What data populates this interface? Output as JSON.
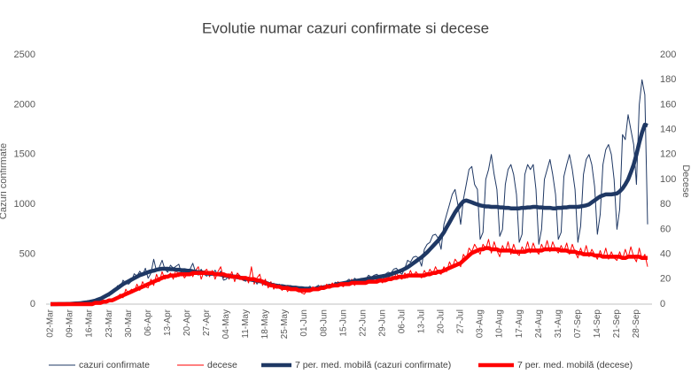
{
  "chart_data": {
    "type": "line",
    "title": "Evolutie numar cazuri confirmate si decese",
    "y_label": "Cazuri confirmate",
    "y2_label": "Decese",
    "categories": [
      "02-Mar",
      null,
      null,
      null,
      null,
      null,
      null,
      "09-Mar",
      null,
      null,
      null,
      null,
      null,
      null,
      "16-Mar",
      null,
      null,
      null,
      null,
      null,
      null,
      "23-Mar",
      null,
      null,
      null,
      null,
      null,
      null,
      "30-Mar",
      null,
      null,
      null,
      null,
      null,
      null,
      "06-Apr",
      null,
      null,
      null,
      null,
      null,
      null,
      "13-Apr",
      null,
      null,
      null,
      null,
      null,
      null,
      "20-Apr",
      null,
      null,
      null,
      null,
      null,
      null,
      "27-Apr",
      null,
      null,
      null,
      null,
      null,
      null,
      "04-May",
      null,
      null,
      null,
      null,
      null,
      null,
      "11-May",
      null,
      null,
      null,
      null,
      null,
      null,
      "18-May",
      null,
      null,
      null,
      null,
      null,
      null,
      "25-May",
      null,
      null,
      null,
      null,
      null,
      null,
      "01-Jun",
      null,
      null,
      null,
      null,
      null,
      null,
      "08-Jun",
      null,
      null,
      null,
      null,
      null,
      null,
      "15-Jun",
      null,
      null,
      null,
      null,
      null,
      null,
      "22-Jun",
      null,
      null,
      null,
      null,
      null,
      null,
      "29-Jun",
      null,
      null,
      null,
      null,
      null,
      null,
      "06-Jul",
      null,
      null,
      null,
      null,
      null,
      null,
      "13-Jul",
      null,
      null,
      null,
      null,
      null,
      null,
      "20-Jul",
      null,
      null,
      null,
      null,
      null,
      null,
      "27-Jul",
      null,
      null,
      null,
      null,
      null,
      null,
      "03-Aug",
      null,
      null,
      null,
      null,
      null,
      null,
      "10-Aug",
      null,
      null,
      null,
      null,
      null,
      null,
      "17-Aug",
      null,
      null,
      null,
      null,
      null,
      null,
      "24-Aug",
      null,
      null,
      null,
      null,
      null,
      null,
      "31-Aug",
      null,
      null,
      null,
      null,
      null,
      null,
      "07-Sep",
      null,
      null,
      null,
      null,
      null,
      null,
      "14-Sep",
      null,
      null,
      null,
      null,
      null,
      null,
      "21-Sep",
      null,
      null,
      null,
      null,
      null,
      null,
      "28-Sep",
      null,
      null,
      null,
      null
    ],
    "series": [
      {
        "name": "cazuri confirmate",
        "color": "#1f3864",
        "values": [
          0,
          0,
          0,
          2,
          0,
          1,
          3,
          2,
          6,
          3,
          10,
          13,
          17,
          22,
          24,
          30,
          28,
          45,
          60,
          70,
          95,
          80,
          110,
          130,
          185,
          160,
          240,
          210,
          200,
          230,
          305,
          280,
          330,
          290,
          360,
          260,
          310,
          450,
          330,
          370,
          440,
          350,
          320,
          390,
          360,
          380,
          400,
          300,
          330,
          305,
          350,
          410,
          320,
          290,
          350,
          300,
          280,
          320,
          300,
          340,
          290,
          330,
          240,
          250,
          300,
          290,
          260,
          310,
          280,
          240,
          230,
          270,
          250,
          260,
          200,
          240,
          210,
          190,
          220,
          180,
          210,
          170,
          200,
          160,
          150,
          190,
          180,
          170,
          160,
          175,
          140,
          130,
          160,
          180,
          150,
          170,
          190,
          160,
          150,
          190,
          200,
          170,
          220,
          210,
          200,
          180,
          230,
          250,
          220,
          260,
          240,
          230,
          200,
          250,
          290,
          270,
          290,
          300,
          270,
          240,
          300,
          320,
          310,
          350,
          360,
          320,
          300,
          360,
          440,
          420,
          470,
          480,
          460,
          380,
          550,
          600,
          620,
          690,
          700,
          660,
          550,
          800,
          900,
          1000,
          1100,
          1150,
          1000,
          800,
          1050,
          1200,
          1350,
          1380,
          1200,
          1150,
          650,
          720,
          1250,
          1350,
          1500,
          1300,
          1150,
          680,
          750,
          1200,
          1350,
          1400,
          1300,
          1100,
          620,
          700,
          1300,
          1400,
          1350,
          1400,
          1150,
          600,
          750,
          1250,
          1350,
          1450,
          1300,
          1100,
          650,
          720,
          1280,
          1400,
          1500,
          1350,
          1150,
          620,
          780,
          1300,
          1450,
          1500,
          1400,
          1180,
          700,
          900,
          1400,
          1550,
          1600,
          1500,
          1250,
          750,
          950,
          1700,
          1650,
          1900,
          1750,
          1600,
          1200,
          2000,
          2250,
          2100,
          800
        ]
      },
      {
        "name": "decese",
        "color": "#ff0000",
        "axis": "y2",
        "values": [
          0,
          0,
          0,
          0,
          0,
          0,
          0,
          0,
          0,
          0,
          0,
          0,
          0,
          0,
          0,
          0,
          1,
          0,
          2,
          3,
          1,
          2,
          4,
          3,
          6,
          8,
          5,
          12,
          8,
          12,
          10,
          16,
          11,
          18,
          14,
          13,
          20,
          15,
          24,
          18,
          26,
          20,
          22,
          25,
          20,
          28,
          22,
          26,
          21,
          24,
          28,
          22,
          27,
          30,
          20,
          26,
          28,
          22,
          27,
          20,
          26,
          30,
          21,
          24,
          20,
          26,
          18,
          25,
          22,
          19,
          22,
          17,
          30,
          16,
          21,
          24,
          15,
          20,
          13,
          18,
          12,
          16,
          14,
          11,
          14,
          10,
          15,
          11,
          13,
          12,
          9,
          8,
          12,
          10,
          14,
          11,
          13,
          15,
          12,
          16,
          13,
          17,
          14,
          18,
          15,
          14,
          18,
          16,
          20,
          15,
          19,
          17,
          16,
          20,
          17,
          22,
          18,
          20,
          19,
          17,
          22,
          19,
          24,
          20,
          25,
          21,
          20,
          25,
          21,
          27,
          22,
          26,
          23,
          21,
          27,
          23,
          28,
          24,
          30,
          25,
          24,
          30,
          26,
          34,
          29,
          36,
          33,
          30,
          40,
          36,
          45,
          42,
          48,
          44,
          40,
          48,
          44,
          52,
          41,
          50,
          43,
          38,
          47,
          42,
          50,
          40,
          48,
          41,
          39,
          46,
          42,
          50,
          41,
          49,
          43,
          40,
          48,
          43,
          51,
          42,
          50,
          44,
          41,
          47,
          42,
          49,
          40,
          48,
          42,
          37,
          45,
          39,
          47,
          38,
          44,
          40,
          36,
          43,
          37,
          45,
          36,
          42,
          37,
          35,
          42,
          36,
          44,
          37,
          46,
          38,
          34,
          45,
          36,
          40,
          30
        ]
      },
      {
        "name": "7 per. med. mobilă (cazuri confirmate)",
        "color": "#1f3864",
        "values": [
          0,
          0,
          0,
          1,
          1,
          1,
          2,
          3,
          4,
          6,
          8,
          10,
          14,
          18,
          22,
          28,
          35,
          45,
          55,
          70,
          85,
          100,
          120,
          140,
          160,
          180,
          200,
          215,
          230,
          245,
          260,
          275,
          290,
          300,
          310,
          320,
          330,
          335,
          345,
          350,
          355,
          355,
          355,
          350,
          350,
          345,
          345,
          340,
          340,
          335,
          335,
          330,
          325,
          320,
          320,
          315,
          310,
          305,
          305,
          300,
          300,
          295,
          290,
          285,
          280,
          280,
          275,
          270,
          265,
          260,
          255,
          250,
          245,
          240,
          235,
          230,
          225,
          215,
          205,
          195,
          190,
          185,
          180,
          180,
          175,
          170,
          170,
          165,
          165,
          160,
          160,
          155,
          155,
          150,
          150,
          155,
          160,
          165,
          170,
          175,
          180,
          185,
          190,
          200,
          205,
          210,
          215,
          220,
          225,
          230,
          235,
          240,
          245,
          250,
          255,
          260,
          265,
          270,
          275,
          280,
          285,
          290,
          300,
          310,
          320,
          330,
          340,
          355,
          370,
          390,
          410,
          430,
          450,
          470,
          495,
          520,
          550,
          580,
          610,
          640,
          680,
          720,
          770,
          820,
          870,
          920,
          960,
          1000,
          1030,
          1040,
          1030,
          1020,
          1010,
          1000,
          990,
          985,
          980,
          980,
          975,
          975,
          975,
          970,
          970,
          965,
          965,
          960,
          960,
          960,
          960,
          965,
          965,
          970,
          970,
          975,
          975,
          970,
          970,
          965,
          965,
          965,
          960,
          960,
          965,
          965,
          970,
          970,
          975,
          975,
          975,
          975,
          980,
          985,
          990,
          1000,
          1020,
          1040,
          1060,
          1080,
          1090,
          1100,
          1100,
          1100,
          1105,
          1110,
          1130,
          1160,
          1200,
          1250,
          1320,
          1400,
          1500,
          1620,
          1720,
          1800,
          1790
        ]
      },
      {
        "name": "7 per. med. mobilă (decese)",
        "color": "#ff0000",
        "axis": "y2",
        "values": [
          0,
          0,
          0,
          0,
          0,
          0,
          0,
          0,
          0,
          0,
          0,
          0,
          0,
          0,
          0,
          0,
          1,
          1,
          1,
          2,
          2,
          3,
          3,
          4,
          5,
          6,
          7,
          8,
          9,
          10,
          11,
          12,
          13,
          14,
          15,
          16,
          17,
          18,
          19,
          20,
          21,
          22,
          22,
          23,
          23,
          23,
          24,
          24,
          24,
          24,
          24,
          25,
          25,
          25,
          25,
          25,
          25,
          25,
          25,
          24,
          24,
          24,
          24,
          23,
          23,
          22,
          22,
          22,
          21,
          21,
          21,
          20,
          20,
          20,
          19,
          19,
          18,
          17,
          16,
          15,
          15,
          14,
          14,
          13,
          13,
          13,
          12,
          12,
          12,
          11,
          11,
          11,
          11,
          11,
          12,
          12,
          12,
          13,
          13,
          14,
          14,
          15,
          15,
          15,
          16,
          16,
          16,
          16,
          17,
          17,
          17,
          17,
          17,
          17,
          18,
          18,
          18,
          18,
          19,
          19,
          19,
          20,
          20,
          21,
          21,
          22,
          22,
          22,
          23,
          23,
          23,
          23,
          23,
          23,
          23,
          24,
          24,
          25,
          25,
          26,
          26,
          27,
          28,
          29,
          30,
          31,
          32,
          33,
          35,
          37,
          39,
          41,
          42,
          43,
          44,
          44,
          45,
          45,
          44,
          44,
          44,
          43,
          43,
          43,
          43,
          43,
          42,
          42,
          42,
          42,
          42,
          43,
          43,
          43,
          43,
          43,
          43,
          44,
          44,
          44,
          44,
          44,
          44,
          43,
          43,
          43,
          42,
          42,
          42,
          41,
          41,
          40,
          40,
          40,
          40,
          39,
          39,
          39,
          38,
          38,
          38,
          38,
          38,
          38,
          38,
          37,
          37,
          38,
          38,
          38,
          38,
          38,
          37,
          37,
          37
        ]
      }
    ],
    "ylim": [
      0,
      2500
    ],
    "yticks": [
      0,
      500,
      1000,
      1500,
      2000,
      2500
    ],
    "y2lim": [
      0,
      200
    ],
    "y2ticks": [
      0,
      20,
      40,
      60,
      80,
      100,
      120,
      140,
      160,
      180,
      200
    ],
    "grid": false
  }
}
